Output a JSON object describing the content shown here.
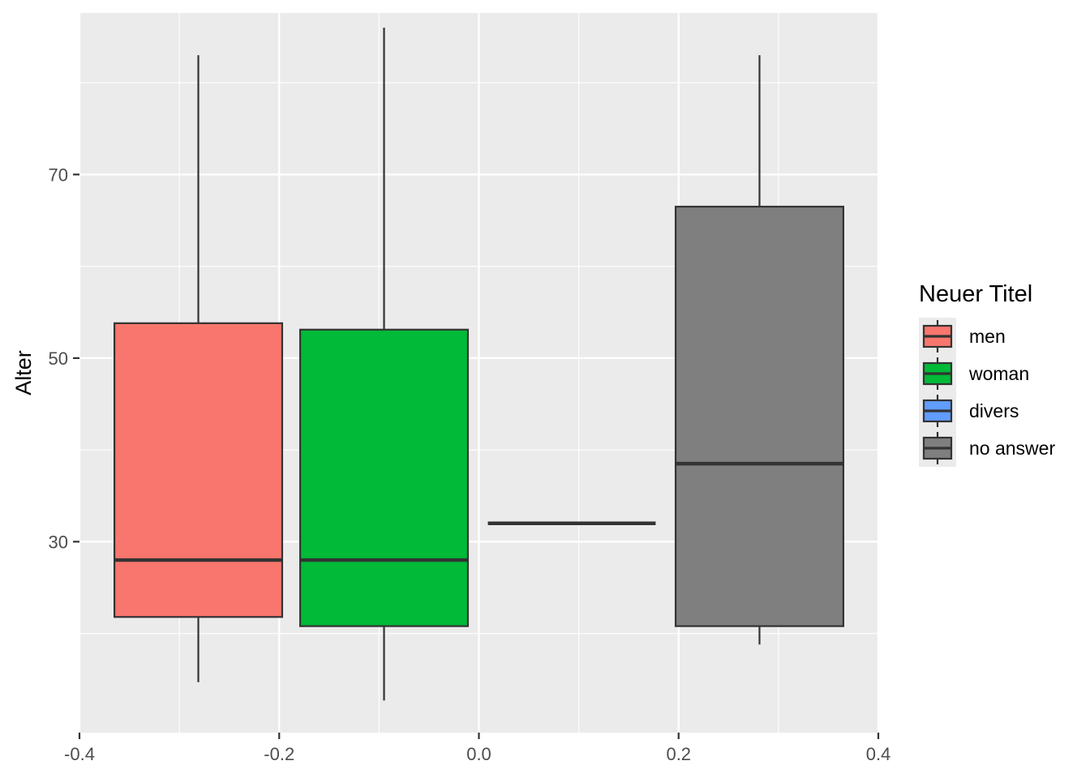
{
  "chart_data": {
    "type": "box",
    "title": "",
    "xlabel": "",
    "ylabel": "Alter",
    "xlim": [
      -0.4,
      0.4
    ],
    "ylim": [
      9.2,
      87.6
    ],
    "x_ticks": [
      -0.4,
      -0.2,
      0.0,
      0.2,
      0.4
    ],
    "x_tick_labels": [
      "-0.4",
      "-0.2",
      "0.0",
      "0.2",
      "0.4"
    ],
    "y_ticks": [
      30,
      50,
      70
    ],
    "y_tick_labels": [
      "30",
      "50",
      "70"
    ],
    "grid": true,
    "legend": {
      "title": "Neuer Titel",
      "position": "right",
      "entries": [
        "men",
        "woman",
        "divers",
        "no answer"
      ]
    },
    "series": [
      {
        "name": "men",
        "color": "#F8766D",
        "x_min": -0.365,
        "x_max": -0.197,
        "x_center": -0.281,
        "min": 14.7,
        "q1": 21.8,
        "median": 28.0,
        "q3": 53.8,
        "max": 83.0
      },
      {
        "name": "woman",
        "color": "#00BA38",
        "x_min": -0.179,
        "x_max": -0.011,
        "x_center": -0.095,
        "min": 12.7,
        "q1": 20.8,
        "median": 28.0,
        "q3": 53.1,
        "max": 86.0
      },
      {
        "name": "divers",
        "color": "#619CFF",
        "x_min": 0.009,
        "x_max": 0.177,
        "x_center": 0.093,
        "min": 32.0,
        "q1": 32.0,
        "median": 32.0,
        "q3": 32.0,
        "max": 32.0
      },
      {
        "name": "no answer",
        "color": "#7F7F7F",
        "x_min": 0.197,
        "x_max": 0.365,
        "x_center": 0.281,
        "min": 18.8,
        "q1": 20.8,
        "median": 38.5,
        "q3": 66.5,
        "max": 83.0
      }
    ]
  }
}
